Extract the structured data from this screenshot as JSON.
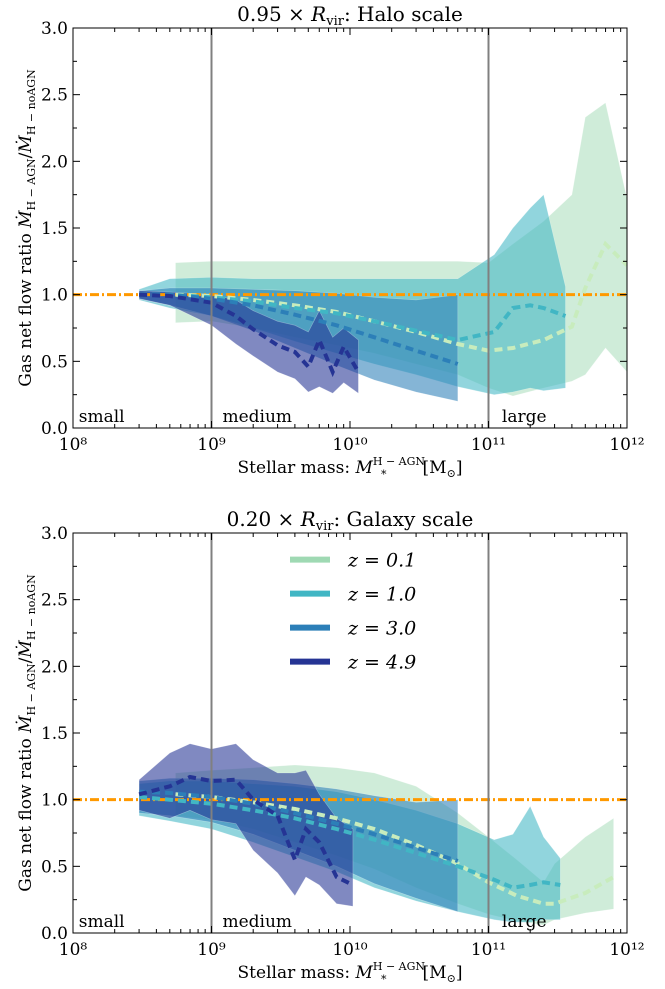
{
  "figure": {
    "colors": {
      "z0.1": "#9fd9b3",
      "z1.0": "#41b6c4",
      "z3.0": "#2c7fb8",
      "z4.9": "#253494",
      "reference": "#ff9900",
      "divider": "#808080"
    }
  },
  "chart_data": [
    {
      "type": "area",
      "title": "0.95 × R_vir: Halo scale",
      "xlabel": "Stellar mass: M_*^{H−AGN} [M_⊙]",
      "ylabel": "Gas net flow ratio Ṁ_{H−AGN}/Ṁ_{H−noAGN}",
      "xscale": "log",
      "xlim": [
        100000000.0,
        1000000000000.0
      ],
      "ylim": [
        0.0,
        3.0
      ],
      "x_ticks": [
        "10^8",
        "10^9",
        "10^10",
        "10^11",
        "10^12"
      ],
      "y_ticks": [
        "0.0",
        "0.5",
        "1.0",
        "1.5",
        "2.0",
        "2.5",
        "3.0"
      ],
      "reference_line": 1.0,
      "dividers": [
        1000000000.0,
        100000000000.0
      ],
      "regions": [
        "small",
        "medium",
        "large"
      ],
      "series": [
        {
          "name": "z = 0.1",
          "x": [
            550000000.0,
            1000000000.0,
            2000000000.0,
            4000000000.0,
            8000000000.0,
            15000000000.0,
            30000000000.0,
            60000000000.0,
            100000000000.0,
            150000000000.0,
            250000000000.0,
            400000000000.0,
            500000000000.0,
            700000000000.0,
            1000000000000.0
          ],
          "median": [
            1.0,
            0.99,
            0.96,
            0.92,
            0.87,
            0.8,
            0.72,
            0.63,
            0.58,
            0.6,
            0.66,
            0.76,
            1.05,
            1.38,
            1.22
          ],
          "lower": [
            0.79,
            0.8,
            0.75,
            0.68,
            0.62,
            0.56,
            0.48,
            0.4,
            0.3,
            0.24,
            0.3,
            0.35,
            0.4,
            0.6,
            0.42
          ],
          "upper": [
            1.24,
            1.25,
            1.25,
            1.25,
            1.25,
            1.25,
            1.25,
            1.25,
            1.24,
            1.38,
            1.55,
            1.75,
            2.33,
            2.44,
            1.72
          ]
        },
        {
          "name": "z = 1.0",
          "x": [
            300000000.0,
            500000000.0,
            1000000000.0,
            2000000000.0,
            4000000000.0,
            8000000000.0,
            15000000000.0,
            30000000000.0,
            60000000000.0,
            110000000000.0,
            150000000000.0,
            200000000000.0,
            250000000000.0,
            360000000000.0
          ],
          "median": [
            1.0,
            1.0,
            0.98,
            0.95,
            0.9,
            0.86,
            0.8,
            0.73,
            0.66,
            0.72,
            0.9,
            0.92,
            0.9,
            0.84
          ],
          "lower": [
            0.96,
            0.9,
            0.84,
            0.75,
            0.65,
            0.56,
            0.48,
            0.4,
            0.31,
            0.25,
            0.27,
            0.3,
            0.28,
            0.3
          ],
          "upper": [
            1.04,
            1.12,
            1.13,
            1.12,
            1.12,
            1.12,
            1.12,
            1.12,
            1.12,
            1.3,
            1.5,
            1.65,
            1.75,
            1.06
          ]
        },
        {
          "name": "z = 3.0",
          "x": [
            300000000.0,
            500000000.0,
            1000000000.0,
            2000000000.0,
            4000000000.0,
            8000000000.0,
            15000000000.0,
            30000000000.0,
            60000000000.0
          ],
          "median": [
            1.0,
            1.0,
            0.97,
            0.92,
            0.85,
            0.77,
            0.68,
            0.58,
            0.48
          ],
          "lower": [
            0.97,
            0.92,
            0.84,
            0.73,
            0.6,
            0.47,
            0.36,
            0.27,
            0.2
          ],
          "upper": [
            1.03,
            1.05,
            1.05,
            1.04,
            1.03,
            1.01,
            0.98,
            0.96,
            1.0
          ]
        },
        {
          "name": "z = 4.9",
          "x": [
            300000000.0,
            500000000.0,
            1000000000.0,
            1500000000.0,
            2000000000.0,
            3000000000.0,
            4000000000.0,
            5000000000.0,
            6000000000.0,
            7500000000.0,
            9000000000.0,
            11500000000.0
          ],
          "median": [
            1.0,
            0.99,
            0.94,
            0.84,
            0.74,
            0.62,
            0.57,
            0.46,
            0.66,
            0.42,
            0.61,
            0.42
          ],
          "lower": [
            0.97,
            0.92,
            0.77,
            0.63,
            0.54,
            0.42,
            0.37,
            0.27,
            0.31,
            0.26,
            0.34,
            0.26
          ],
          "upper": [
            1.03,
            1.02,
            1.0,
            0.96,
            0.88,
            0.8,
            0.77,
            0.72,
            0.88,
            0.68,
            0.75,
            0.66
          ]
        }
      ]
    },
    {
      "type": "area",
      "title": "0.20 × R_vir: Galaxy scale",
      "xlabel": "Stellar mass: M_*^{H−AGN} [M_⊙]",
      "ylabel": "Gas net flow ratio Ṁ_{H−AGN}/Ṁ_{H−noAGN}",
      "xscale": "log",
      "xlim": [
        100000000.0,
        1000000000000.0
      ],
      "ylim": [
        0.0,
        3.0
      ],
      "x_ticks": [
        "10^8",
        "10^9",
        "10^10",
        "10^11",
        "10^12"
      ],
      "y_ticks": [
        "0.0",
        "0.5",
        "1.0",
        "1.5",
        "2.0",
        "2.5",
        "3.0"
      ],
      "reference_line": 1.0,
      "dividers": [
        1000000000.0,
        100000000000.0
      ],
      "regions": [
        "small",
        "medium",
        "large"
      ],
      "legend": {
        "location": "upper-center",
        "entries": [
          "z = 0.1",
          "z = 1.0",
          "z = 3.0",
          "z = 4.9"
        ]
      },
      "series": [
        {
          "name": "z = 0.1",
          "x": [
            550000000.0,
            1000000000.0,
            2000000000.0,
            4000000000.0,
            8000000000.0,
            15000000000.0,
            30000000000.0,
            60000000000.0,
            100000000000.0,
            160000000000.0,
            250000000000.0,
            300000000000.0,
            500000000000.0,
            800000000000.0
          ],
          "median": [
            1.04,
            1.02,
            0.98,
            0.93,
            0.86,
            0.78,
            0.66,
            0.52,
            0.38,
            0.28,
            0.22,
            0.22,
            0.3,
            0.42
          ],
          "lower": [
            0.88,
            0.85,
            0.78,
            0.68,
            0.58,
            0.48,
            0.34,
            0.22,
            0.14,
            0.09,
            0.06,
            0.1,
            0.15,
            0.18
          ],
          "upper": [
            1.2,
            1.22,
            1.24,
            1.26,
            1.24,
            1.2,
            1.1,
            0.9,
            0.72,
            0.55,
            0.38,
            0.52,
            0.72,
            0.86
          ]
        },
        {
          "name": "z = 1.0",
          "x": [
            300000000.0,
            500000000.0,
            1000000000.0,
            2000000000.0,
            4000000000.0,
            8000000000.0,
            15000000000.0,
            30000000000.0,
            60000000000.0,
            110000000000.0,
            150000000000.0,
            200000000000.0,
            250000000000.0,
            330000000000.0
          ],
          "median": [
            1.02,
            1.0,
            0.97,
            0.92,
            0.86,
            0.78,
            0.7,
            0.6,
            0.5,
            0.4,
            0.34,
            0.36,
            0.38,
            0.36
          ],
          "lower": [
            0.88,
            0.84,
            0.78,
            0.68,
            0.57,
            0.46,
            0.34,
            0.24,
            0.16,
            0.1,
            0.08,
            0.08,
            0.1,
            0.1
          ],
          "upper": [
            1.12,
            1.14,
            1.14,
            1.12,
            1.1,
            1.06,
            1.0,
            0.92,
            0.82,
            0.7,
            0.74,
            0.95,
            0.72,
            0.56
          ]
        },
        {
          "name": "z = 3.0",
          "x": [
            300000000.0,
            500000000.0,
            1000000000.0,
            2000000000.0,
            4000000000.0,
            8000000000.0,
            15000000000.0,
            30000000000.0,
            60000000000.0
          ],
          "median": [
            1.06,
            1.05,
            1.02,
            0.97,
            0.9,
            0.82,
            0.74,
            0.64,
            0.54
          ],
          "lower": [
            0.9,
            0.88,
            0.83,
            0.74,
            0.62,
            0.5,
            0.37,
            0.26,
            0.16
          ],
          "upper": [
            1.14,
            1.16,
            1.16,
            1.15,
            1.12,
            1.08,
            1.03,
            0.98,
            1.0
          ]
        },
        {
          "name": "z = 4.9",
          "x": [
            300000000.0,
            500000000.0,
            700000000.0,
            1000000000.0,
            1500000000.0,
            2000000000.0,
            3000000000.0,
            4000000000.0,
            4800000000.0,
            6000000000.0,
            8000000000.0,
            10500000000.0
          ],
          "median": [
            1.04,
            1.1,
            1.17,
            1.14,
            1.15,
            1.0,
            0.88,
            0.55,
            0.78,
            0.68,
            0.42,
            0.36
          ],
          "lower": [
            0.92,
            0.86,
            0.92,
            0.85,
            0.82,
            0.62,
            0.45,
            0.28,
            0.42,
            0.36,
            0.22,
            0.2
          ],
          "upper": [
            1.15,
            1.35,
            1.42,
            1.38,
            1.42,
            1.3,
            1.2,
            1.2,
            1.22,
            1.04,
            0.86,
            0.78
          ]
        }
      ]
    }
  ]
}
